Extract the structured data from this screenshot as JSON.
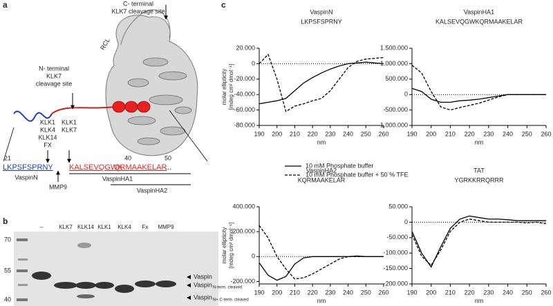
{
  "panel_a": {
    "label": "a",
    "c_site": [
      "C- terminal",
      "KLK7 cleavage site"
    ],
    "rcl": "RCL",
    "n_site": [
      "N- terminal",
      "KLK7",
      "cleavage site"
    ],
    "cut1": [
      "KLK1",
      "KLK4",
      "KLK14",
      "FX"
    ],
    "cut2": [
      "KLK1",
      "KLK7"
    ],
    "cut3": "MMP9",
    "positions": [
      "21",
      "40",
      "50"
    ],
    "sequence": [
      {
        "text": "LKPSFSPRNY",
        "color": "#1f3fbf"
      },
      {
        "text": "KALSEVQGWK",
        "color": "#d42a2a"
      },
      {
        "text": "QRMAAKELAR",
        "color": "#d42a2a"
      },
      {
        "text": "...",
        "color": "#222"
      }
    ],
    "peptides": [
      "VaspinN",
      "VaspinHA1",
      "VaspinHA2"
    ]
  },
  "panel_b": {
    "label": "b",
    "markers": [
      "70",
      "55",
      "40"
    ],
    "lanes": [
      "--",
      "KLK7",
      "KLK14",
      "KLK1",
      "KLK4",
      "Fx",
      "MMP9"
    ],
    "bands": [
      {
        "main": "Vaspin"
      },
      {
        "main": "Vaspin",
        "sub": "N-term. cleaved"
      },
      {
        "main": "Vaspin",
        "sub": "N+ C-term. cleaved"
      }
    ]
  },
  "panel_c_label": "c",
  "chart_data": [
    {
      "type": "line",
      "title": "VaspinN",
      "subtitle": "LKPSFSPRNY",
      "xlabel": "nm",
      "ylabel": [
        "molar ellipticity",
        "[mdeg cm² dmol⁻¹]"
      ],
      "x": [
        190,
        195,
        200,
        205,
        210,
        215,
        220,
        225,
        230,
        235,
        240,
        245,
        250,
        255,
        260
      ],
      "xlim": [
        190,
        260
      ],
      "xticks": [
        190,
        200,
        210,
        220,
        230,
        240,
        250,
        260
      ],
      "ylim": [
        -80000,
        20000
      ],
      "yticks": [
        {
          "value": -80000,
          "label": "-80.000"
        },
        {
          "value": -60000,
          "label": "-60.000"
        },
        {
          "value": -40000,
          "label": "-40.000"
        },
        {
          "value": -20000,
          "label": "-20.000"
        },
        0,
        {
          "value": 20000,
          "label": "20.000"
        }
      ],
      "hline": 0,
      "series": [
        {
          "name": "10 mM Phosphate buffer",
          "color": "#000",
          "dashed": false,
          "values": [
            -52000,
            -50000,
            -48000,
            -45000,
            -35000,
            -25000,
            -18000,
            -12000,
            -7000,
            -3000,
            0,
            1000,
            2000,
            1000,
            0
          ]
        },
        {
          "name": "10 mM Phosphate buffer + 50 % TFE",
          "color": "#000",
          "dashed": true,
          "values": [
            0,
            12000,
            -20000,
            -62000,
            -55000,
            -52000,
            -48000,
            -45000,
            -35000,
            -20000,
            -5000,
            3000,
            6000,
            7000,
            8000
          ]
        }
      ]
    },
    {
      "type": "line",
      "title": "VaspinHA1",
      "subtitle": "KALSEVQGWKQRMAAKELAR",
      "xlabel": "nm",
      "x": [
        190,
        195,
        200,
        205,
        210,
        215,
        220,
        225,
        230,
        235,
        240,
        245,
        250,
        255,
        260
      ],
      "xlim": [
        190,
        260
      ],
      "xticks": [
        190,
        200,
        210,
        220,
        230,
        240,
        250,
        260
      ],
      "ylim": [
        -1000000,
        1500000
      ],
      "yticks": [
        {
          "value": -1000000,
          "label": "-1.000.000"
        },
        {
          "value": -500000,
          "label": "-500.000"
        },
        0,
        {
          "value": 500000,
          "label": "500.000"
        },
        {
          "value": 1000000,
          "label": "1.000.000"
        },
        {
          "value": 1500000,
          "label": "1.500.000"
        }
      ],
      "hline": 0,
      "series": [
        {
          "name": "10 mM Phosphate buffer",
          "color": "#000",
          "dashed": false,
          "values": [
            200000,
            100000,
            -150000,
            -250000,
            -250000,
            -200000,
            -180000,
            -150000,
            -100000,
            -50000,
            0,
            0,
            0,
            0,
            0
          ]
        },
        {
          "name": "10 mM Phosphate buffer + 50 % TFE",
          "color": "#000",
          "dashed": true,
          "values": [
            950000,
            700000,
            100000,
            -400000,
            -500000,
            -420000,
            -350000,
            -280000,
            -180000,
            -80000,
            0,
            0,
            0,
            0,
            0
          ]
        }
      ]
    },
    {
      "type": "line",
      "title": "VaspinHA2",
      "subtitle": "KQRMAAKELAR",
      "xlabel": "nm",
      "ylabel": [
        "molar ellipticity",
        "[mdeg cm² dmol⁻¹]"
      ],
      "x": [
        190,
        195,
        200,
        205,
        210,
        215,
        220,
        225,
        230,
        235,
        240,
        245,
        250,
        255,
        260
      ],
      "xlim": [
        190,
        260
      ],
      "xticks": [
        190,
        200,
        210,
        220,
        230,
        240,
        250,
        260
      ],
      "ylim": [
        -220000,
        400000
      ],
      "yticks": [
        {
          "value": -200000,
          "label": "-200.000"
        },
        0,
        {
          "value": 200000,
          "label": "200.000"
        },
        {
          "value": 400000,
          "label": "400.000"
        }
      ],
      "hline": 0,
      "series": [
        {
          "name": "10 mM Phosphate buffer",
          "color": "#000",
          "dashed": false,
          "values": [
            -50000,
            -150000,
            -190000,
            -160000,
            -60000,
            -10000,
            0,
            0,
            0,
            0,
            0,
            5000,
            0,
            0,
            0
          ]
        },
        {
          "name": "10 mM Phosphate buffer + 50 % TFE",
          "color": "#000",
          "dashed": true,
          "values": [
            250000,
            150000,
            0,
            -100000,
            -180000,
            -170000,
            -140000,
            -100000,
            -60000,
            -20000,
            0,
            0,
            0,
            0,
            0
          ]
        }
      ]
    },
    {
      "type": "line",
      "title": "TAT",
      "subtitle": "YGRKKRRQRRR",
      "xlabel": "nm",
      "x": [
        190,
        195,
        200,
        205,
        210,
        215,
        220,
        225,
        230,
        235,
        240,
        245,
        250,
        255,
        260
      ],
      "xlim": [
        190,
        260
      ],
      "xticks": [
        190,
        200,
        210,
        220,
        230,
        240,
        250,
        260
      ],
      "ylim": [
        -200000,
        50000
      ],
      "yticks": [
        {
          "value": -200000,
          "label": "-200.000"
        },
        {
          "value": -150000,
          "label": "-150.000"
        },
        {
          "value": -100000,
          "label": "-100.000"
        },
        {
          "value": -50000,
          "label": "-50.000"
        },
        0,
        {
          "value": 50000,
          "label": "50.000"
        }
      ],
      "hline": 0,
      "series": [
        {
          "name": "10 mM Phosphate buffer",
          "color": "#000",
          "dashed": false,
          "values": [
            -30000,
            -100000,
            -145000,
            -80000,
            -20000,
            10000,
            20000,
            15000,
            10000,
            10000,
            8000,
            5000,
            5000,
            5000,
            5000
          ]
        },
        {
          "name": "10 mM Phosphate buffer + 50 % TFE",
          "color": "#000",
          "dashed": true,
          "values": [
            -40000,
            -110000,
            -140000,
            -90000,
            -30000,
            0,
            10000,
            5000,
            0,
            0,
            0,
            0,
            -2000,
            0,
            -5000
          ]
        }
      ]
    }
  ]
}
